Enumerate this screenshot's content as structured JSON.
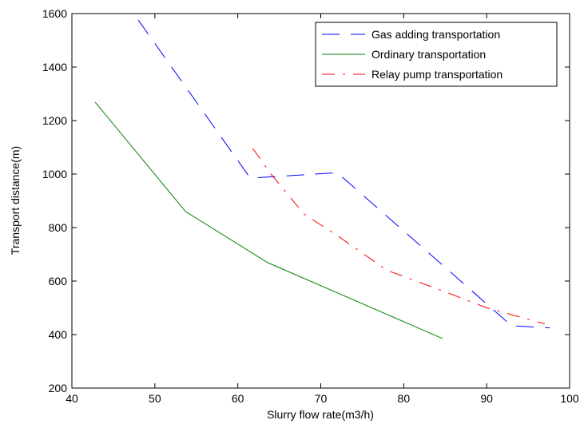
{
  "chart_data": {
    "type": "line",
    "xlabel": "Slurry flow rate(m3/h)",
    "ylabel": "Transport distance(m)",
    "xlim": [
      40,
      100
    ],
    "ylim": [
      200,
      1600
    ],
    "xticks": [
      40,
      50,
      60,
      70,
      80,
      90,
      100
    ],
    "yticks": [
      200,
      400,
      600,
      800,
      1000,
      1200,
      1400,
      1600
    ],
    "grid": false,
    "legend": "upper right",
    "series": [
      {
        "name": "Gas adding transportation",
        "color": "#0000ff",
        "dash": "dashed",
        "x": [
          48,
          61.5,
          72,
          93,
          97.6
        ],
        "values": [
          1576,
          985,
          1005,
          433,
          425
        ]
      },
      {
        "name": "Ordinary transportation",
        "color": "#008000",
        "dash": "solid",
        "x": [
          42.8,
          53.7,
          63.6,
          84.7
        ],
        "values": [
          1269,
          860,
          669,
          385
        ]
      },
      {
        "name": "Relay pump transportation",
        "color": "#ff0000",
        "dash": "dashdot",
        "x": [
          61.8,
          64,
          68,
          72,
          78,
          85,
          90,
          97
        ],
        "values": [
          1096,
          1000,
          850,
          770,
          640,
          560,
          500,
          440
        ]
      }
    ]
  }
}
